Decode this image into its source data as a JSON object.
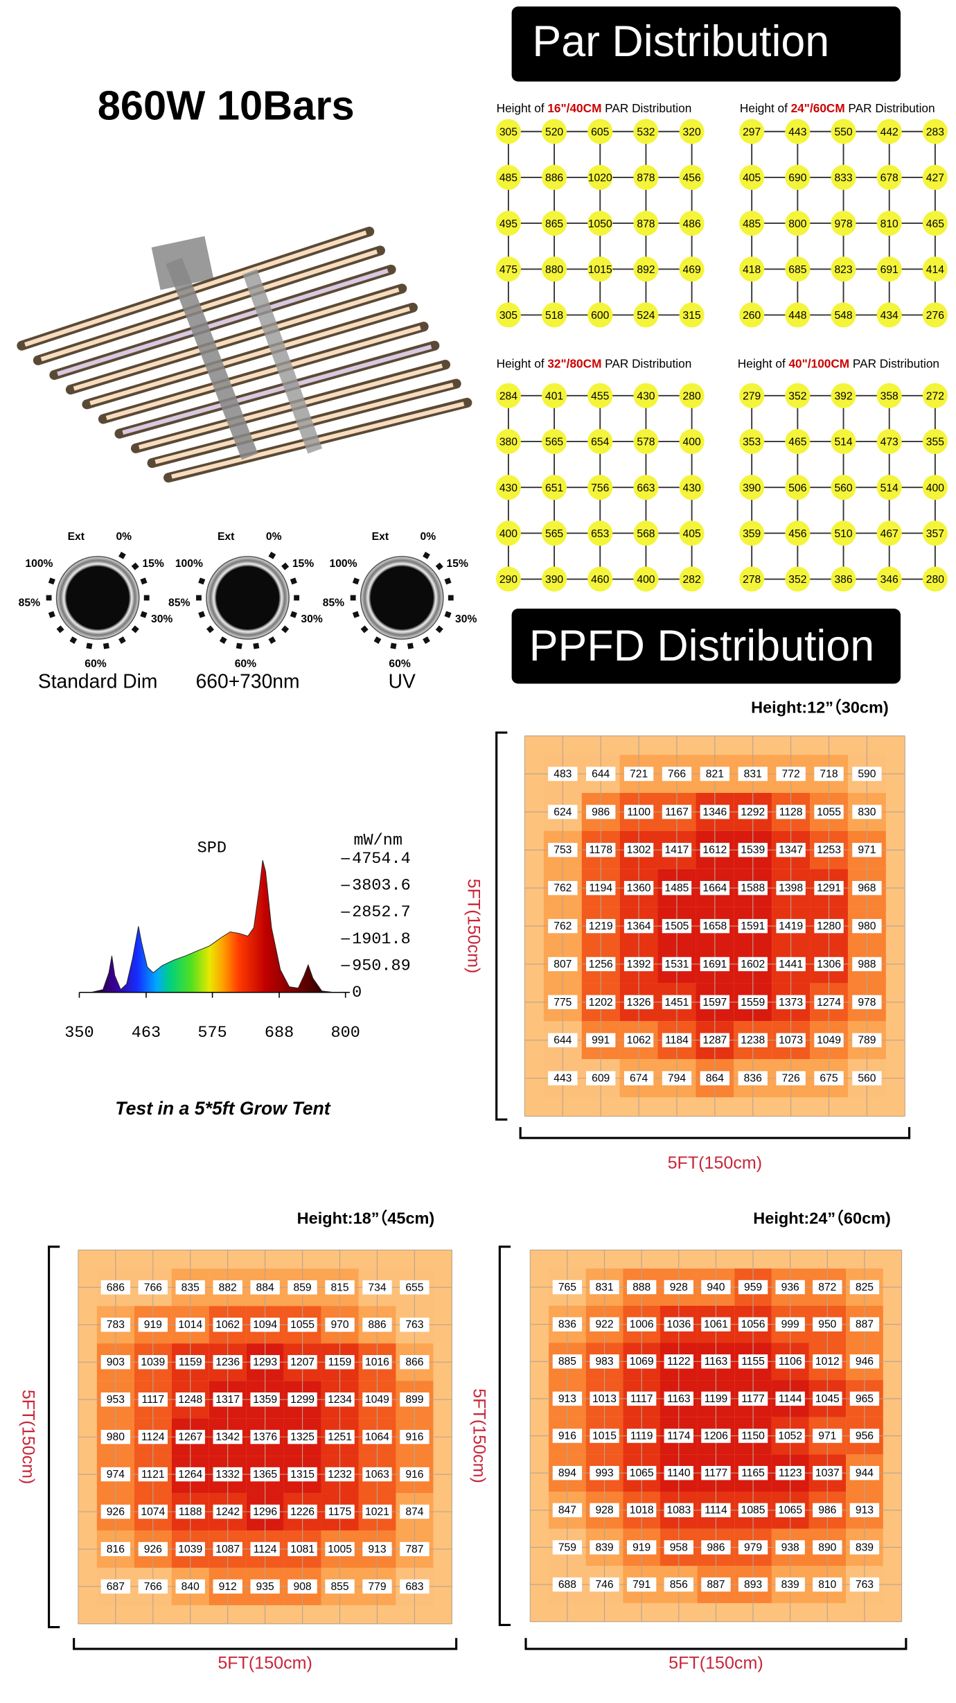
{
  "title": "860W 10Bars",
  "par": {
    "heading": "Par Distribution",
    "grids": [
      {
        "prefix": "Height of",
        "height": "16\"/40CM",
        "suffix": "PAR Distribution",
        "values": [
          [
            305,
            520,
            605,
            532,
            320
          ],
          [
            485,
            886,
            1020,
            878,
            456
          ],
          [
            495,
            865,
            1050,
            878,
            486
          ],
          [
            475,
            880,
            1015,
            892,
            469
          ],
          [
            305,
            518,
            600,
            524,
            315
          ]
        ]
      },
      {
        "prefix": "Height of",
        "height": "24\"/60CM",
        "suffix": "PAR Distribution",
        "values": [
          [
            297,
            443,
            550,
            442,
            283
          ],
          [
            405,
            690,
            833,
            678,
            427
          ],
          [
            485,
            800,
            978,
            810,
            465
          ],
          [
            418,
            685,
            823,
            691,
            414
          ],
          [
            260,
            448,
            548,
            434,
            276
          ]
        ]
      },
      {
        "prefix": "Height of",
        "height": "32\"/80CM",
        "suffix": "PAR Distribution",
        "values": [
          [
            284,
            401,
            455,
            430,
            280
          ],
          [
            380,
            565,
            654,
            578,
            400
          ],
          [
            430,
            651,
            756,
            663,
            430
          ],
          [
            400,
            565,
            653,
            568,
            405
          ],
          [
            290,
            390,
            460,
            400,
            282
          ]
        ]
      },
      {
        "prefix": "Height of",
        "height": "40\"/100CM",
        "suffix": "PAR Distribution",
        "values": [
          [
            279,
            352,
            392,
            358,
            272
          ],
          [
            353,
            465,
            514,
            473,
            355
          ],
          [
            390,
            506,
            560,
            514,
            400
          ],
          [
            359,
            456,
            510,
            467,
            357
          ],
          [
            278,
            352,
            386,
            346,
            280
          ]
        ]
      }
    ]
  },
  "dials": [
    {
      "caption": "Standard Dim",
      "labels": [
        "Ext",
        "0%",
        "15%",
        "30%",
        "60%",
        "85%",
        "100%"
      ]
    },
    {
      "caption": "660+730nm",
      "labels": [
        "Ext",
        "0%",
        "15%",
        "30%",
        "60%",
        "85%",
        "100%"
      ]
    },
    {
      "caption": "UV",
      "labels": [
        "Ext",
        "0%",
        "15%",
        "30%",
        "60%",
        "85%",
        "100%"
      ]
    }
  ],
  "chart_data": {
    "type": "area",
    "title": "SPD",
    "unit": "mW/nm",
    "x": [
      350,
      370,
      390,
      400,
      405,
      410,
      420,
      430,
      440,
      450,
      455,
      465,
      475,
      490,
      510,
      530,
      550,
      570,
      590,
      605,
      620,
      635,
      645,
      655,
      660,
      665,
      675,
      690,
      705,
      720,
      730,
      737,
      745,
      760,
      780,
      800
    ],
    "values": [
      0,
      0,
      100,
      700,
      1300,
      600,
      100,
      300,
      1200,
      2350,
      1800,
      900,
      700,
      950,
      1150,
      1300,
      1480,
      1650,
      1950,
      2150,
      2100,
      2000,
      2300,
      3800,
      4700,
      4300,
      2300,
      800,
      200,
      150,
      600,
      980,
      500,
      50,
      0,
      0
    ],
    "xlim": [
      350,
      800
    ],
    "ylim": [
      0,
      4754.4
    ],
    "xticks": [
      350,
      463,
      575,
      688,
      800
    ],
    "yticks": [
      0,
      950.89,
      1901.8,
      2852.7,
      3803.6,
      4754.4
    ]
  },
  "tent_note": "Test in a 5*5ft Grow Tent",
  "ppfd": {
    "heading": "PPFD Distribution",
    "maps": [
      {
        "title": "Height:12”（30cm)",
        "side_label": "5FT(150cm)",
        "bottom_label": "5FT(150cm)",
        "values": [
          [
            483,
            644,
            721,
            766,
            821,
            831,
            772,
            718,
            590
          ],
          [
            624,
            986,
            1100,
            1167,
            1346,
            1292,
            1128,
            1055,
            830
          ],
          [
            753,
            1178,
            1302,
            1417,
            1612,
            1539,
            1347,
            1253,
            971
          ],
          [
            762,
            1194,
            1360,
            1485,
            1664,
            1588,
            1398,
            1291,
            968
          ],
          [
            762,
            1219,
            1364,
            1505,
            1658,
            1591,
            1419,
            1280,
            980
          ],
          [
            807,
            1256,
            1392,
            1531,
            1691,
            1602,
            1441,
            1306,
            988
          ],
          [
            775,
            1202,
            1326,
            1451,
            1597,
            1559,
            1373,
            1274,
            978
          ],
          [
            644,
            991,
            1062,
            1184,
            1287,
            1238,
            1073,
            1049,
            789
          ],
          [
            443,
            609,
            674,
            794,
            864,
            836,
            726,
            675,
            560
          ]
        ]
      },
      {
        "title": "Height:18”（45cm)",
        "side_label": "5FT(150cm)",
        "bottom_label": "5FT(150cm)",
        "values": [
          [
            686,
            766,
            835,
            882,
            884,
            859,
            815,
            734,
            655
          ],
          [
            783,
            919,
            1014,
            1062,
            1094,
            1055,
            970,
            886,
            763
          ],
          [
            903,
            1039,
            1159,
            1236,
            1293,
            1207,
            1159,
            1016,
            866
          ],
          [
            953,
            1117,
            1248,
            1317,
            1359,
            1299,
            1234,
            1049,
            899
          ],
          [
            980,
            1124,
            1267,
            1342,
            1376,
            1325,
            1251,
            1064,
            916
          ],
          [
            974,
            1121,
            1264,
            1332,
            1365,
            1315,
            1232,
            1063,
            916
          ],
          [
            926,
            1074,
            1188,
            1242,
            1296,
            1226,
            1175,
            1021,
            874
          ],
          [
            816,
            926,
            1039,
            1087,
            1124,
            1081,
            1005,
            913,
            787
          ],
          [
            687,
            766,
            840,
            912,
            935,
            908,
            855,
            779,
            683
          ]
        ]
      },
      {
        "title": "Height:24”（60cm)",
        "side_label": "5FT(150cm)",
        "bottom_label": "5FT(150cm)",
        "values": [
          [
            765,
            831,
            888,
            928,
            940,
            959,
            936,
            872,
            825
          ],
          [
            836,
            922,
            1006,
            1036,
            1061,
            1056,
            999,
            950,
            887
          ],
          [
            885,
            983,
            1069,
            1122,
            1163,
            1155,
            1106,
            1012,
            946
          ],
          [
            913,
            1013,
            1117,
            1163,
            1199,
            1177,
            1144,
            1045,
            965
          ],
          [
            916,
            1015,
            1119,
            1174,
            1206,
            1150,
            1052,
            971,
            956
          ],
          [
            894,
            993,
            1065,
            1140,
            1177,
            1165,
            1123,
            1037,
            944
          ],
          [
            847,
            928,
            1018,
            1083,
            1114,
            1085,
            1065,
            986,
            913
          ],
          [
            759,
            839,
            919,
            958,
            986,
            979,
            938,
            890,
            839
          ],
          [
            688,
            746,
            791,
            856,
            887,
            893,
            839,
            810,
            763
          ]
        ]
      }
    ]
  }
}
